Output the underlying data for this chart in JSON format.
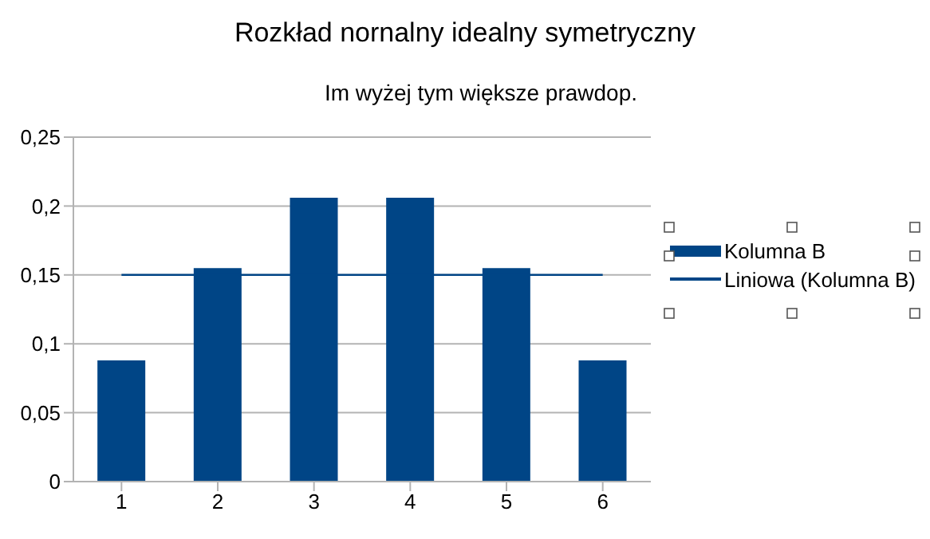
{
  "chart_data": {
    "type": "bar",
    "title": "Rozkład nornalny idealny symetryczny",
    "subtitle": "Im wyżej tym większe prawdop.",
    "categories": [
      "1",
      "2",
      "3",
      "4",
      "5",
      "6"
    ],
    "series": [
      {
        "name": "Kolumna B",
        "color": "#004586",
        "values": [
          0.088,
          0.155,
          0.206,
          0.206,
          0.155,
          0.088
        ]
      },
      {
        "name": "Liniowa (Kolumna B)",
        "type": "line",
        "color": "#004586",
        "values": [
          0.15,
          0.15,
          0.15,
          0.15,
          0.15,
          0.15
        ]
      }
    ],
    "ylim": [
      0,
      0.25
    ],
    "yticks": [
      {
        "value": 0,
        "label": "0"
      },
      {
        "value": 0.05,
        "label": "0,05"
      },
      {
        "value": 0.1,
        "label": "0,1"
      },
      {
        "value": 0.15,
        "label": "0,15"
      },
      {
        "value": 0.2,
        "label": "0,2"
      },
      {
        "value": 0.25,
        "label": "0,25"
      }
    ],
    "grid": "y",
    "legend": "right",
    "marker": "none"
  }
}
